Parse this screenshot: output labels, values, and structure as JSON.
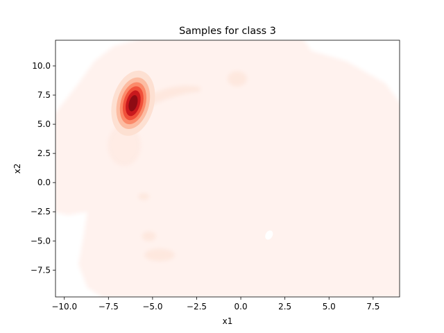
{
  "chart_data": {
    "type": "kde-contourf",
    "title": "Samples for class 3",
    "xlabel": "x1",
    "ylabel": "x2",
    "xlim": [
      -10.5,
      9.0
    ],
    "ylim": [
      -9.8,
      12.2
    ],
    "xticks": [
      -10.0,
      -7.5,
      -5.0,
      -2.5,
      0.0,
      2.5,
      5.0,
      7.5
    ],
    "xtick_labels": [
      "−10.0",
      "−7.5",
      "−5.0",
      "−2.5",
      "0.0",
      "2.5",
      "5.0",
      "7.5"
    ],
    "yticks": [
      -7.5,
      -5.0,
      -2.5,
      0.0,
      2.5,
      5.0,
      7.5,
      10.0
    ],
    "ytick_labels": [
      "−7.5",
      "−5.0",
      "−2.5",
      "0.0",
      "2.5",
      "5.0",
      "7.5",
      "10.0"
    ],
    "colormap": "Reds",
    "level_colors": [
      "#fff2ee",
      "#fde0d2",
      "#fcbca2",
      "#fb8a6a",
      "#f0503a",
      "#c9181d",
      "#8e0b13"
    ],
    "peak": {
      "x": -6.1,
      "y": 6.8
    },
    "secondary_modes": [
      {
        "x": -0.2,
        "y": 8.9
      },
      {
        "x": -4.6,
        "y": -6.2
      },
      {
        "x": -5.5,
        "y": -1.2
      },
      {
        "x": -5.2,
        "y": -4.6
      }
    ],
    "grid": false,
    "legend": "none"
  }
}
